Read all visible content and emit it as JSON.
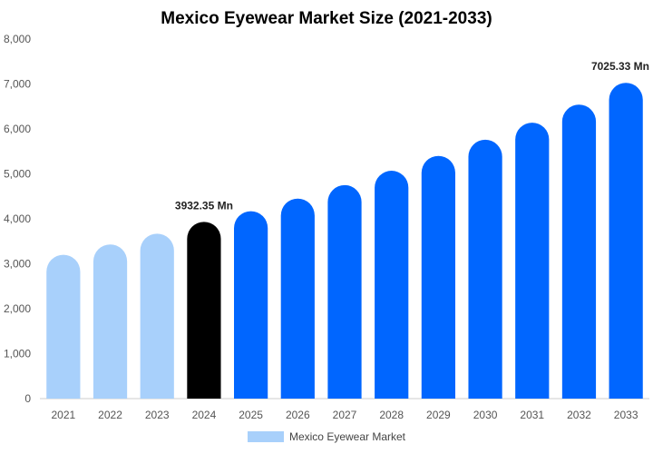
{
  "chart_data": {
    "type": "bar",
    "title": "Mexico Eyewear Market Size (2021-2033)",
    "categories": [
      "2021",
      "2022",
      "2023",
      "2024",
      "2025",
      "2026",
      "2027",
      "2028",
      "2029",
      "2030",
      "2031",
      "2032",
      "2033"
    ],
    "series": [
      {
        "name": "Mexico Eyewear Market",
        "values": [
          3200,
          3430,
          3670,
          3932.35,
          4170,
          4450,
          4750,
          5070,
          5400,
          5760,
          6140,
          6540,
          7025.33
        ]
      }
    ],
    "ylim": [
      0,
      8000
    ],
    "yticks": [
      "0",
      "1,000",
      "2,000",
      "3,000",
      "4,000",
      "5,000",
      "6,000",
      "7,000",
      "8,000"
    ],
    "data_labels": [
      {
        "index": 3,
        "text": "3932.35 Mn"
      },
      {
        "index": 12,
        "text": "7025.33 Mn"
      }
    ],
    "colors": {
      "historical": "#a8d0fb",
      "current": "#000000",
      "forecast": "#0066ff",
      "axis": "#cccccc"
    },
    "legend_position": "bottom-center",
    "grid": false
  }
}
